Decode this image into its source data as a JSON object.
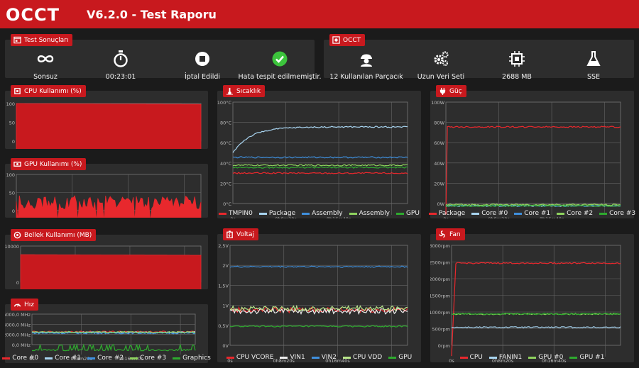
{
  "header": {
    "title": "V6.2.0 - Test Raporu",
    "logo": "OCCT"
  },
  "results": {
    "title": "Test Sonuçları",
    "items": [
      {
        "icon": "infinity-icon",
        "label": "Sonsuz"
      },
      {
        "icon": "stopwatch-icon",
        "label": "00:23:01"
      },
      {
        "icon": "stop-icon",
        "label": "İptal Edildi"
      },
      {
        "icon": "check-circle-icon",
        "label": "Hata tespit edilmemiştir."
      }
    ]
  },
  "occt": {
    "title": "OCCT",
    "items": [
      {
        "icon": "worker-icon",
        "label": "12 Kullanılan Parçacık"
      },
      {
        "icon": "gears-icon",
        "label": "Uzun Veri Seti"
      },
      {
        "icon": "chip-icon",
        "label": "2688 MB"
      },
      {
        "icon": "flask-icon",
        "label": "SSE"
      }
    ]
  },
  "colors": {
    "accent": "#c8191e",
    "red": "#e8282d",
    "lightblue": "#a8d4f0",
    "blue": "#3f8fdc",
    "green": "#8ed25e",
    "lightgreen": "#b8e68a",
    "white": "#eeeeee",
    "darkgreen": "#2eaa2e"
  },
  "charts": [
    {
      "id": "cpu",
      "title": "CPU Kullanımı (%)",
      "icon": "cpu-icon",
      "chart_data": {
        "type": "area",
        "yticks": [
          "100",
          "50",
          "0"
        ],
        "xticks": [
          "0",
          "500",
          "1000"
        ],
        "series": [
          {
            "color": "#c8191e",
            "kind": "flat",
            "value": 100
          }
        ]
      }
    },
    {
      "id": "gpu",
      "title": "GPU Kullanımı (%)",
      "icon": "gpu-icon",
      "chart_data": {
        "type": "area",
        "yticks": [
          "100",
          "50",
          "0"
        ],
        "xticks": [
          "0",
          "500",
          "1000"
        ],
        "series": [
          {
            "color": "#e8282d",
            "kind": "noisy",
            "value": 40,
            "amp": 15
          }
        ]
      }
    },
    {
      "id": "mem",
      "title": "Bellek Kullanımı (MB)",
      "icon": "memory-icon",
      "chart_data": {
        "type": "area",
        "yticks": [
          "10000",
          "0"
        ],
        "xticks": [
          "0",
          "500",
          "1000"
        ],
        "series": [
          {
            "color": "#c8191e",
            "kind": "flat",
            "value": 9000
          }
        ]
      }
    },
    {
      "id": "speed",
      "title": "Hız",
      "icon": "speed-icon",
      "chart_data": {
        "type": "line",
        "yticks": [
          "6000,0 MHz",
          "4000,0 MHz",
          "2000,0 MHz",
          "0,0 MHz"
        ],
        "xticks": [
          "0s",
          "0h8m20s",
          "0h16m40s"
        ],
        "series": [
          {
            "name": "Core #0",
            "color": "#e8282d",
            "value": 3600
          },
          {
            "name": "Core #1",
            "color": "#a8d4f0",
            "value": 3500
          },
          {
            "name": "Core #2",
            "color": "#3f8fdc",
            "value": 3400
          },
          {
            "name": "Core #3",
            "color": "#8ed25e",
            "value": 3550
          },
          {
            "name": "Graphics",
            "color": "#2eaa2e",
            "value": 700
          }
        ]
      }
    },
    {
      "id": "temp",
      "title": "Sıcaklık",
      "icon": "thermo-icon",
      "chart_data": {
        "type": "line",
        "yticks": [
          "100°C",
          "80°C",
          "60°C",
          "40°C",
          "20°C",
          "0°C"
        ],
        "xticks": [
          "0s",
          "0h8m20s",
          "0h16m40s"
        ],
        "series": [
          {
            "name": "TMPIN0",
            "color": "#e8282d",
            "value": 37
          },
          {
            "name": "Package",
            "color": "#a8d4f0",
            "value": 78
          },
          {
            "name": "Assembly",
            "color": "#3f8fdc",
            "value": 51
          },
          {
            "name": "Assembly",
            "color": "#8ed25e",
            "value": 44
          },
          {
            "name": "GPU",
            "color": "#2eaa2e",
            "value": 42
          }
        ]
      }
    },
    {
      "id": "volt",
      "title": "Voltaj",
      "icon": "battery-icon",
      "chart_data": {
        "type": "line",
        "yticks": [
          "2,5V",
          "2V",
          "1,5V",
          "1V",
          "0,5V",
          "0V"
        ],
        "xticks": [
          "0s",
          "0h8m20s",
          "0h16m40s"
        ],
        "series": [
          {
            "name": "CPU VCORE",
            "color": "#e8282d",
            "value": 1.05
          },
          {
            "name": "VIN1",
            "color": "#eeeeee",
            "value": 1.02
          },
          {
            "name": "VIN2",
            "color": "#3f8fdc",
            "value": 2.02
          },
          {
            "name": "CPU VDD",
            "color": "#b8e68a",
            "value": 1.08
          },
          {
            "name": "GPU",
            "color": "#2eaa2e",
            "value": 0.68
          }
        ]
      }
    },
    {
      "id": "power",
      "title": "Güç",
      "icon": "plug-icon",
      "chart_data": {
        "type": "line",
        "yticks": [
          "100W",
          "80W",
          "60W",
          "40W",
          "20W",
          "0W"
        ],
        "xticks": [
          "0s",
          "0h8m20s",
          "0h16m40s"
        ],
        "series": [
          {
            "name": "Package",
            "color": "#e8282d",
            "value": 78
          },
          {
            "name": "Core #0",
            "color": "#a8d4f0",
            "value": 8
          },
          {
            "name": "Core #1",
            "color": "#3f8fdc",
            "value": 8
          },
          {
            "name": "Core #2",
            "color": "#8ed25e",
            "value": 9
          },
          {
            "name": "Core #3",
            "color": "#2eaa2e",
            "value": 8
          }
        ]
      }
    },
    {
      "id": "fan",
      "title": "Fan",
      "icon": "fan-icon",
      "chart_data": {
        "type": "line",
        "yticks": [
          "3000rpm",
          "2500rpm",
          "2000rpm",
          "1500rpm",
          "1000rpm",
          "500rpm",
          "0rpm"
        ],
        "xticks": [
          "0s",
          "0h8m20s",
          "0h16m40s"
        ],
        "series": [
          {
            "name": "CPU",
            "color": "#e8282d",
            "value": 2520
          },
          {
            "name": "FANIN1",
            "color": "#a8d4f0",
            "value": 790
          },
          {
            "name": "GPU #0",
            "color": "#8ed25e",
            "value": 1150
          },
          {
            "name": "GPU #1",
            "color": "#2eaa2e",
            "value": 1150
          }
        ]
      }
    }
  ]
}
